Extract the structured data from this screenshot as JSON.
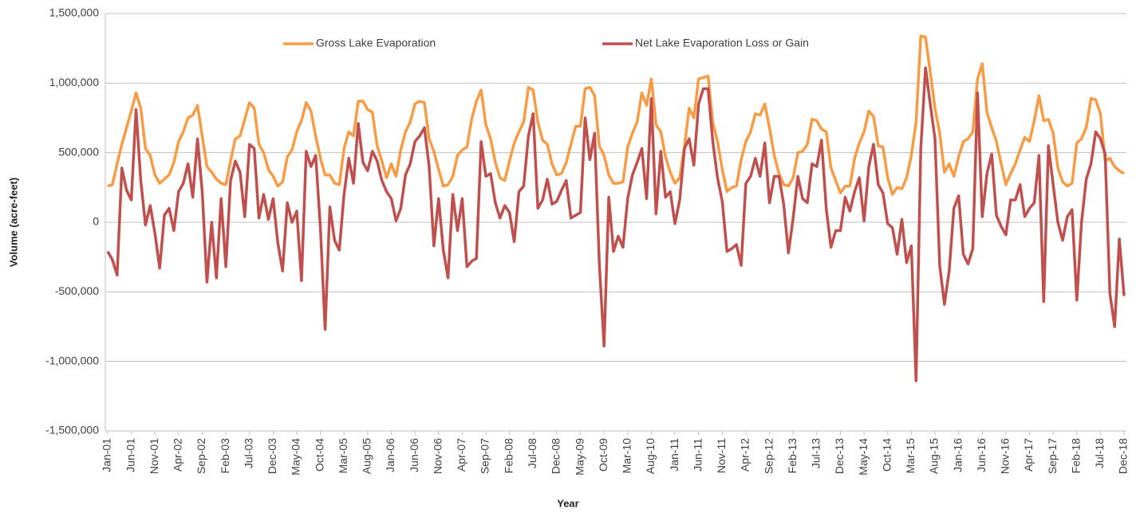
{
  "chart_data": {
    "type": "line",
    "x_label": "Year",
    "y_label": "Volume (acre-feet)",
    "legend": "top",
    "grid": true,
    "ylim": [
      -1500000,
      1500000
    ],
    "yticks": [
      {
        "value": -1500000,
        "label": "-1,500,000"
      },
      {
        "value": -1000000,
        "label": "-1,000,000"
      },
      {
        "value": -500000,
        "label": "-500,000"
      },
      0,
      {
        "value": 500000,
        "label": "500,000"
      },
      {
        "value": 1000000,
        "label": "1,000,000"
      },
      {
        "value": 1500000,
        "label": "1,500,000"
      }
    ],
    "categories": [
      "Jan-01",
      null,
      null,
      null,
      null,
      "Jun-01",
      null,
      null,
      null,
      null,
      "Nov-01",
      null,
      null,
      null,
      null,
      "Apr-02",
      null,
      null,
      null,
      null,
      "Sep-02",
      null,
      null,
      null,
      null,
      "Feb-03",
      null,
      null,
      null,
      null,
      "Jul-03",
      null,
      null,
      null,
      null,
      "Dec-03",
      null,
      null,
      null,
      null,
      "May-04",
      null,
      null,
      null,
      null,
      "Oct-04",
      null,
      null,
      null,
      null,
      "Mar-05",
      null,
      null,
      null,
      null,
      "Aug-05",
      null,
      null,
      null,
      null,
      "Jan-06",
      null,
      null,
      null,
      null,
      "Jun-06",
      null,
      null,
      null,
      null,
      "Nov-06",
      null,
      null,
      null,
      null,
      "Apr-07",
      null,
      null,
      null,
      null,
      "Sep-07",
      null,
      null,
      null,
      null,
      "Feb-08",
      null,
      null,
      null,
      null,
      "Jul-08",
      null,
      null,
      null,
      null,
      "Dec-08",
      null,
      null,
      null,
      null,
      "May-09",
      null,
      null,
      null,
      null,
      "Oct-09",
      null,
      null,
      null,
      null,
      "Mar-10",
      null,
      null,
      null,
      null,
      "Aug-10",
      null,
      null,
      null,
      null,
      "Jan-11",
      null,
      null,
      null,
      null,
      "Jun-11",
      null,
      null,
      null,
      null,
      "Nov-11",
      null,
      null,
      null,
      null,
      "Apr-12",
      null,
      null,
      null,
      null,
      "Sep-12",
      null,
      null,
      null,
      null,
      "Feb-13",
      null,
      null,
      null,
      null,
      "Jul-13",
      null,
      null,
      null,
      null,
      "Dec-13",
      null,
      null,
      null,
      null,
      "May-14",
      null,
      null,
      null,
      null,
      "Oct-14",
      null,
      null,
      null,
      null,
      "Mar-15",
      null,
      null,
      null,
      null,
      "Aug-15",
      null,
      null,
      null,
      null,
      "Jan-16",
      null,
      null,
      null,
      null,
      "Jun-16",
      null,
      null,
      null,
      null,
      "Nov-16",
      null,
      null,
      null,
      null,
      "Apr-17",
      null,
      null,
      null,
      null,
      "Sep-17",
      null,
      null,
      null,
      null,
      "Feb-18",
      null,
      null,
      null,
      null,
      "Jul-18",
      null,
      null,
      null,
      null,
      "Dec-18"
    ],
    "series": [
      {
        "name": "Gross Lake Evaporation",
        "color": "#f79b45",
        "values": [
          260000,
          270000,
          420000,
          560000,
          680000,
          800000,
          930000,
          820000,
          530000,
          480000,
          340000,
          280000,
          310000,
          340000,
          430000,
          580000,
          650000,
          750000,
          770000,
          840000,
          620000,
          400000,
          360000,
          310000,
          280000,
          270000,
          440000,
          600000,
          620000,
          740000,
          860000,
          820000,
          560000,
          500000,
          380000,
          330000,
          260000,
          290000,
          470000,
          520000,
          650000,
          730000,
          860000,
          800000,
          620000,
          460000,
          340000,
          340000,
          280000,
          270000,
          530000,
          650000,
          620000,
          870000,
          870000,
          810000,
          790000,
          550000,
          440000,
          320000,
          420000,
          330000,
          520000,
          650000,
          720000,
          850000,
          870000,
          860000,
          600000,
          510000,
          380000,
          260000,
          270000,
          330000,
          480000,
          520000,
          540000,
          740000,
          870000,
          950000,
          700000,
          600000,
          430000,
          320000,
          300000,
          440000,
          570000,
          650000,
          720000,
          970000,
          950000,
          720000,
          590000,
          560000,
          420000,
          340000,
          350000,
          430000,
          560000,
          690000,
          690000,
          960000,
          970000,
          910000,
          550000,
          480000,
          340000,
          280000,
          280000,
          290000,
          540000,
          640000,
          720000,
          930000,
          840000,
          1030000,
          700000,
          650000,
          470000,
          360000,
          280000,
          320000,
          540000,
          820000,
          750000,
          1030000,
          1040000,
          1050000,
          720000,
          580000,
          380000,
          220000,
          250000,
          260000,
          450000,
          580000,
          650000,
          780000,
          770000,
          850000,
          680000,
          480000,
          350000,
          270000,
          260000,
          320000,
          500000,
          510000,
          560000,
          740000,
          730000,
          670000,
          650000,
          390000,
          300000,
          210000,
          260000,
          260000,
          460000,
          570000,
          650000,
          800000,
          760000,
          550000,
          540000,
          320000,
          200000,
          250000,
          240000,
          320000,
          480000,
          720000,
          1340000,
          1330000,
          1080000,
          820000,
          640000,
          360000,
          420000,
          330000,
          470000,
          580000,
          600000,
          650000,
          1030000,
          1140000,
          790000,
          680000,
          580000,
          420000,
          270000,
          350000,
          420000,
          520000,
          610000,
          580000,
          730000,
          910000,
          730000,
          740000,
          640000,
          390000,
          290000,
          260000,
          280000,
          570000,
          600000,
          680000,
          890000,
          880000,
          780000,
          440000,
          460000,
          400000,
          370000,
          350000
        ]
      },
      {
        "name": "Net Lake Evaporation Loss or Gain",
        "color": "#c0504d",
        "values": [
          -210000,
          -270000,
          -380000,
          390000,
          230000,
          160000,
          810000,
          300000,
          -20000,
          120000,
          -80000,
          -330000,
          50000,
          100000,
          -60000,
          220000,
          280000,
          420000,
          180000,
          600000,
          220000,
          -430000,
          0,
          -400000,
          170000,
          -320000,
          300000,
          440000,
          360000,
          40000,
          560000,
          530000,
          30000,
          200000,
          20000,
          170000,
          -150000,
          -350000,
          140000,
          0,
          80000,
          -420000,
          510000,
          400000,
          480000,
          -40000,
          -770000,
          110000,
          -130000,
          -200000,
          200000,
          460000,
          280000,
          710000,
          430000,
          370000,
          510000,
          440000,
          300000,
          220000,
          170000,
          10000,
          100000,
          340000,
          420000,
          580000,
          620000,
          680000,
          400000,
          -170000,
          170000,
          -200000,
          -400000,
          200000,
          -60000,
          170000,
          -320000,
          -280000,
          -260000,
          580000,
          330000,
          350000,
          140000,
          30000,
          120000,
          70000,
          -140000,
          220000,
          260000,
          620000,
          780000,
          100000,
          160000,
          310000,
          130000,
          150000,
          230000,
          300000,
          30000,
          50000,
          70000,
          750000,
          450000,
          640000,
          -300000,
          -890000,
          180000,
          -210000,
          -100000,
          -180000,
          170000,
          340000,
          430000,
          530000,
          170000,
          890000,
          60000,
          510000,
          180000,
          220000,
          -10000,
          160000,
          530000,
          600000,
          410000,
          850000,
          960000,
          960000,
          580000,
          320000,
          150000,
          -210000,
          -190000,
          -160000,
          -310000,
          280000,
          330000,
          460000,
          330000,
          570000,
          140000,
          330000,
          330000,
          130000,
          -220000,
          30000,
          330000,
          170000,
          140000,
          420000,
          400000,
          590000,
          100000,
          -180000,
          -60000,
          -60000,
          180000,
          80000,
          220000,
          320000,
          10000,
          400000,
          560000,
          270000,
          210000,
          -10000,
          -40000,
          -230000,
          20000,
          -290000,
          -170000,
          -1140000,
          530000,
          1110000,
          850000,
          600000,
          -310000,
          -590000,
          -350000,
          100000,
          190000,
          -230000,
          -300000,
          -190000,
          930000,
          40000,
          350000,
          490000,
          50000,
          -30000,
          -90000,
          160000,
          160000,
          270000,
          40000,
          100000,
          140000,
          480000,
          -570000,
          550000,
          270000,
          0,
          -130000,
          40000,
          90000,
          -560000,
          0,
          310000,
          420000,
          650000,
          600000,
          490000,
          -510000,
          -750000,
          -120000,
          -530000
        ]
      }
    ]
  }
}
